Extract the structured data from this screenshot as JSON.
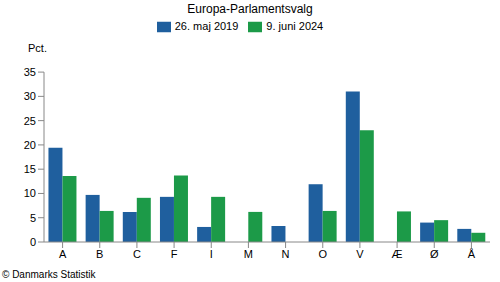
{
  "chart_data": {
    "type": "bar",
    "title": "Europa-Parlamentsvalg",
    "y_label": "Pct.",
    "annotation": "© Danmarks Statistik",
    "categories": [
      "A",
      "B",
      "C",
      "F",
      "I",
      "M",
      "N",
      "O",
      "V",
      "Æ",
      "Ø",
      "Å"
    ],
    "series": [
      {
        "name": "26. maj 2019",
        "color": "#1f5f9e",
        "values": [
          19.4,
          9.7,
          6.2,
          9.3,
          3.1,
          null,
          3.3,
          11.9,
          31.0,
          null,
          4.0,
          2.7
        ]
      },
      {
        "name": "9. juni 2024",
        "color": "#1c9a48",
        "values": [
          13.6,
          6.4,
          9.1,
          13.7,
          9.3,
          6.2,
          null,
          6.4,
          23.0,
          6.3,
          4.5,
          1.9
        ]
      }
    ],
    "ylim": [
      0,
      35
    ],
    "yticks": [
      0,
      5,
      10,
      15,
      20,
      25,
      30,
      35
    ],
    "grid": false,
    "legend": "top"
  }
}
